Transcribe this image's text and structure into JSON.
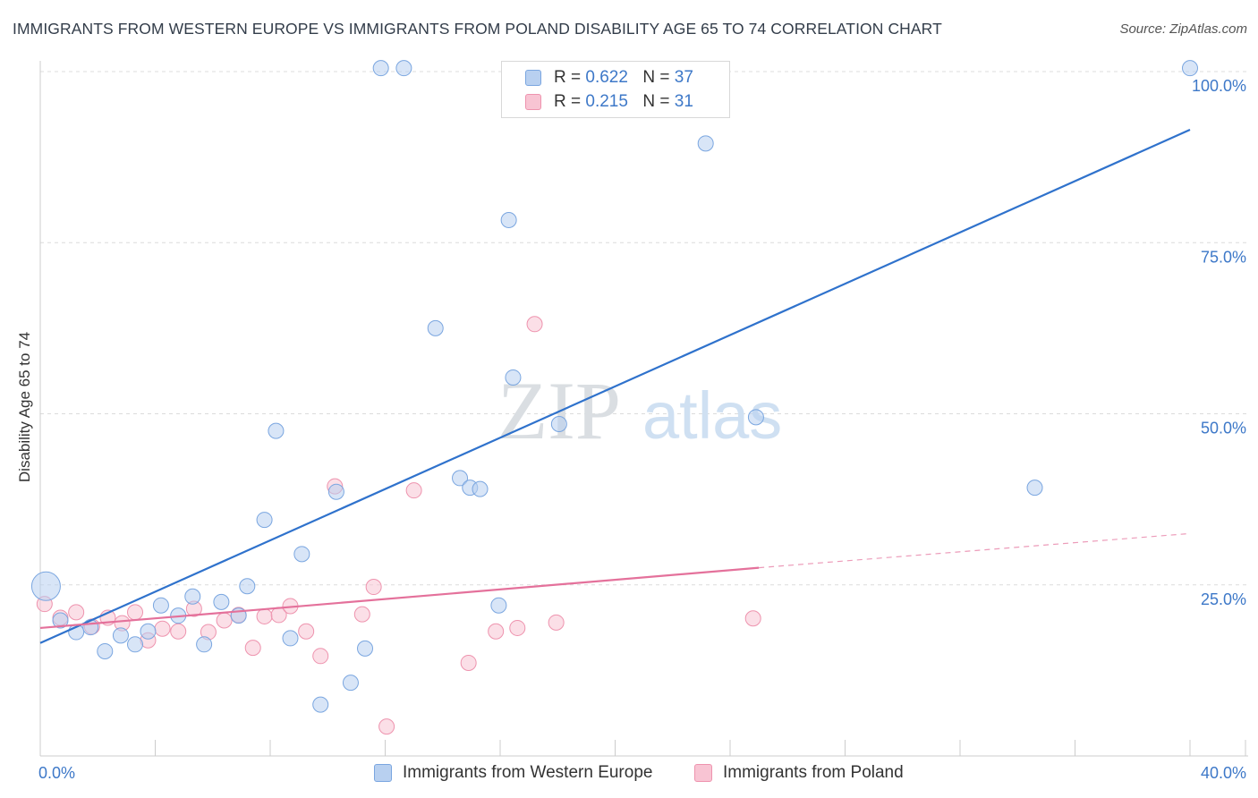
{
  "header": {
    "title": "IMMIGRANTS FROM WESTERN EUROPE VS IMMIGRANTS FROM POLAND DISABILITY AGE 65 TO 74 CORRELATION CHART",
    "source": "Source: ZipAtlas.com"
  },
  "watermark": {
    "zip": "ZIP",
    "atlas": "atlas"
  },
  "legend": {
    "r_label": "R =",
    "n_label": "N =",
    "series1": {
      "r": "0.622",
      "n": "37"
    },
    "series2": {
      "r": "0.215",
      "n": "31"
    }
  },
  "bottom_legend": {
    "series1": "Immigrants from Western Europe",
    "series2": "Immigrants from Poland"
  },
  "colors": {
    "blue_fill": "#b8d0f0",
    "blue_stroke": "#7aa6e0",
    "blue_line": "#2f72cc",
    "pink_fill": "#f8c4d3",
    "pink_stroke": "#ee93ae",
    "pink_line": "#e4719b",
    "tick_label": "#3d78c8"
  },
  "chart_data": {
    "type": "scatter",
    "title": "IMMIGRANTS FROM WESTERN EUROPE VS IMMIGRANTS FROM POLAND DISABILITY AGE 65 TO 74 CORRELATION CHART",
    "xlabel": "",
    "ylabel": "Disability Age 65 to 74",
    "xlim": [
      0,
      40
    ],
    "ylim": [
      0,
      100
    ],
    "x_tick_labels": [
      "0.0%",
      "40.0%"
    ],
    "y_ticks": [
      25,
      50,
      75,
      100
    ],
    "y_tick_labels": [
      "25.0%",
      "50.0%",
      "75.0%",
      "100.0%"
    ],
    "grid": true,
    "legend_position": "top-center",
    "series": [
      {
        "name": "Immigrants from Western Europe",
        "color": "#7aa6e0",
        "points": [
          [
            0.2,
            24.8
          ],
          [
            0.7,
            19.8
          ],
          [
            1.25,
            18.1
          ],
          [
            1.75,
            18.8
          ],
          [
            2.25,
            15.3
          ],
          [
            2.8,
            17.6
          ],
          [
            3.3,
            16.3
          ],
          [
            3.75,
            18.2
          ],
          [
            4.2,
            22.0
          ],
          [
            4.8,
            20.5
          ],
          [
            5.3,
            23.3
          ],
          [
            5.7,
            16.3
          ],
          [
            6.3,
            22.5
          ],
          [
            6.9,
            20.5
          ],
          [
            7.2,
            24.8
          ],
          [
            7.8,
            34.5
          ],
          [
            8.2,
            47.5
          ],
          [
            8.7,
            17.2
          ],
          [
            9.1,
            29.5
          ],
          [
            9.75,
            7.5
          ],
          [
            10.3,
            38.6
          ],
          [
            10.8,
            10.7
          ],
          [
            11.3,
            15.7
          ],
          [
            11.85,
            100.5
          ],
          [
            12.65,
            100.5
          ],
          [
            13.75,
            62.5
          ],
          [
            14.6,
            40.6
          ],
          [
            14.95,
            39.2
          ],
          [
            15.3,
            39.0
          ],
          [
            15.95,
            22.0
          ],
          [
            16.3,
            78.3
          ],
          [
            16.45,
            55.3
          ],
          [
            18.05,
            48.5
          ],
          [
            23.15,
            89.5
          ],
          [
            24.9,
            49.5
          ],
          [
            34.6,
            39.2
          ],
          [
            40.0,
            100.5
          ]
        ]
      },
      {
        "name": "Immigrants from Poland",
        "color": "#ee93ae",
        "points": [
          [
            0.15,
            22.2
          ],
          [
            0.7,
            20.2
          ],
          [
            1.25,
            21.0
          ],
          [
            1.8,
            18.9
          ],
          [
            2.35,
            20.2
          ],
          [
            2.85,
            19.4
          ],
          [
            3.3,
            21.0
          ],
          [
            3.75,
            16.9
          ],
          [
            4.25,
            18.6
          ],
          [
            4.8,
            18.2
          ],
          [
            5.35,
            21.5
          ],
          [
            5.85,
            18.1
          ],
          [
            6.4,
            19.8
          ],
          [
            6.9,
            20.6
          ],
          [
            7.4,
            15.8
          ],
          [
            7.8,
            20.4
          ],
          [
            8.3,
            20.6
          ],
          [
            8.7,
            21.9
          ],
          [
            9.25,
            18.2
          ],
          [
            9.75,
            14.6
          ],
          [
            10.25,
            39.4
          ],
          [
            11.2,
            20.7
          ],
          [
            11.6,
            24.7
          ],
          [
            12.05,
            4.3
          ],
          [
            13.0,
            38.8
          ],
          [
            14.9,
            13.6
          ],
          [
            15.85,
            18.2
          ],
          [
            16.6,
            18.7
          ],
          [
            17.2,
            63.1
          ],
          [
            17.95,
            19.5
          ],
          [
            24.8,
            20.1
          ]
        ]
      }
    ],
    "trend_lines": [
      {
        "series": "Immigrants from Western Europe",
        "from": [
          0,
          16.5
        ],
        "to": [
          40,
          91.5
        ]
      },
      {
        "series": "Immigrants from Poland",
        "from": [
          0,
          18.7
        ],
        "to": [
          25,
          27.5
        ],
        "dashed_to": [
          40,
          32.5
        ]
      }
    ]
  }
}
